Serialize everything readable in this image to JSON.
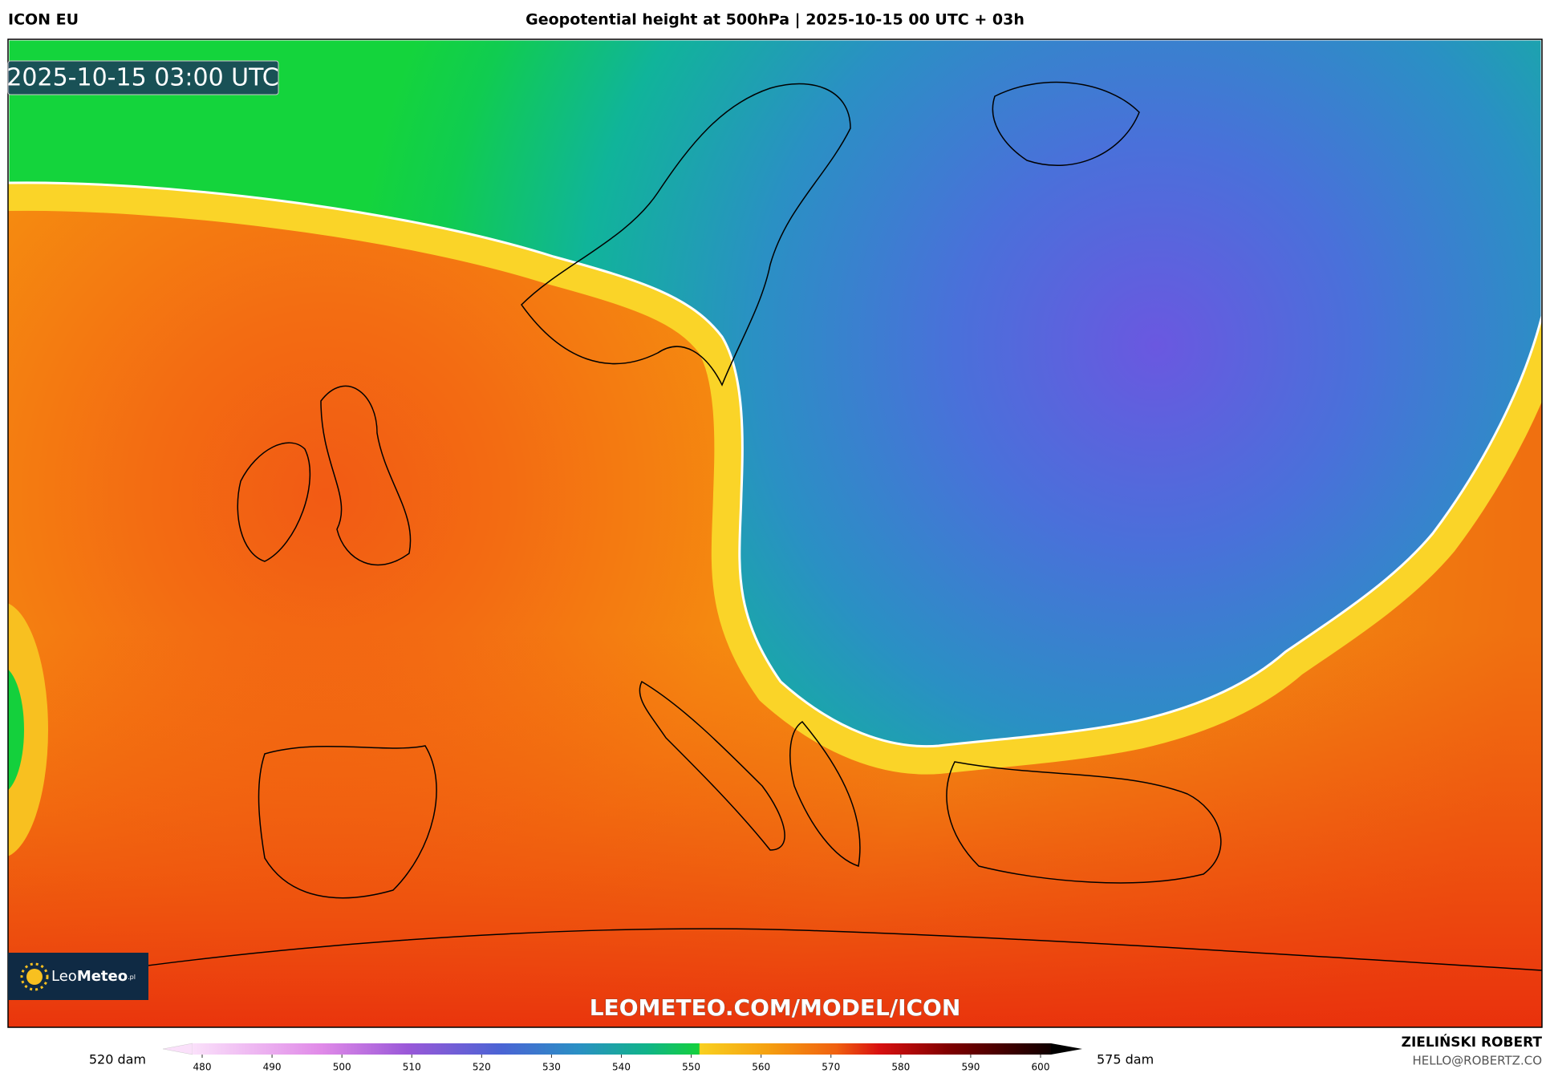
{
  "header": {
    "model": "ICON EU",
    "title": "Geopotential height at 500hPa | 2025-10-15 00 UTC + 03h"
  },
  "map": {
    "timestamp": "2025-10-15 03:00 UTC",
    "watermark": "LEOMETEO.COM/MODEL/ICON"
  },
  "logo": {
    "light": "Leo",
    "bold": "Meteo",
    "domain": ".pl"
  },
  "colorbar": {
    "min_label": "520 dam",
    "max_label": "575 dam",
    "ticks": [
      480,
      490,
      500,
      510,
      520,
      530,
      540,
      550,
      560,
      570,
      580,
      590,
      600
    ]
  },
  "credit": {
    "author": "ZIELIŃSKI ROBERT",
    "email": "HELLO@ROBERTZ.CO"
  }
}
